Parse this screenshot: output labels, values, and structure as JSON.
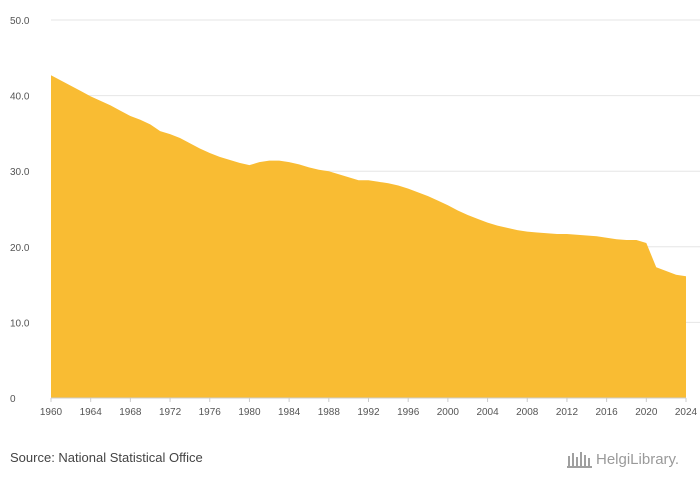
{
  "chart_data": {
    "type": "area",
    "title": "",
    "xlabel": "",
    "ylabel": "",
    "xlim": [
      1960,
      2024
    ],
    "ylim": [
      0,
      50
    ],
    "grid": true,
    "color": "#F9BC33",
    "x_ticks": [
      "1960",
      "1964",
      "1968",
      "1972",
      "1976",
      "1980",
      "1984",
      "1988",
      "1992",
      "1996",
      "2000",
      "2004",
      "2008",
      "2012",
      "2016",
      "2020",
      "2024"
    ],
    "y_ticks": [
      "0",
      "10.0",
      "20.0",
      "30.0",
      "40.0",
      "50.0"
    ],
    "series": [
      {
        "name": "Value",
        "x": [
          1960,
          1961,
          1962,
          1963,
          1964,
          1965,
          1966,
          1967,
          1968,
          1969,
          1970,
          1971,
          1972,
          1973,
          1974,
          1975,
          1976,
          1977,
          1978,
          1979,
          1980,
          1981,
          1982,
          1983,
          1984,
          1985,
          1986,
          1987,
          1988,
          1989,
          1990,
          1991,
          1992,
          1993,
          1994,
          1995,
          1996,
          1997,
          1998,
          1999,
          2000,
          2001,
          2002,
          2003,
          2004,
          2005,
          2006,
          2007,
          2008,
          2009,
          2010,
          2011,
          2012,
          2013,
          2014,
          2015,
          2016,
          2017,
          2018,
          2019,
          2020,
          2021,
          2022,
          2023,
          2024
        ],
        "values": [
          42.7,
          42.0,
          41.3,
          40.6,
          39.9,
          39.3,
          38.7,
          38.0,
          37.3,
          36.8,
          36.2,
          35.3,
          34.9,
          34.4,
          33.7,
          33.0,
          32.4,
          31.9,
          31.5,
          31.1,
          30.8,
          31.2,
          31.4,
          31.4,
          31.2,
          30.9,
          30.5,
          30.2,
          30.0,
          29.6,
          29.2,
          28.8,
          28.8,
          28.6,
          28.4,
          28.1,
          27.7,
          27.2,
          26.7,
          26.1,
          25.5,
          24.8,
          24.2,
          23.7,
          23.2,
          22.8,
          22.5,
          22.2,
          22.0,
          21.9,
          21.8,
          21.7,
          21.7,
          21.6,
          21.5,
          21.4,
          21.2,
          21.0,
          20.9,
          20.9,
          20.5,
          17.3,
          16.8,
          16.3,
          16.1
        ]
      }
    ]
  },
  "footer": {
    "source": "Source: National Statistical Office",
    "logo_text": "HelgiLibrary."
  }
}
